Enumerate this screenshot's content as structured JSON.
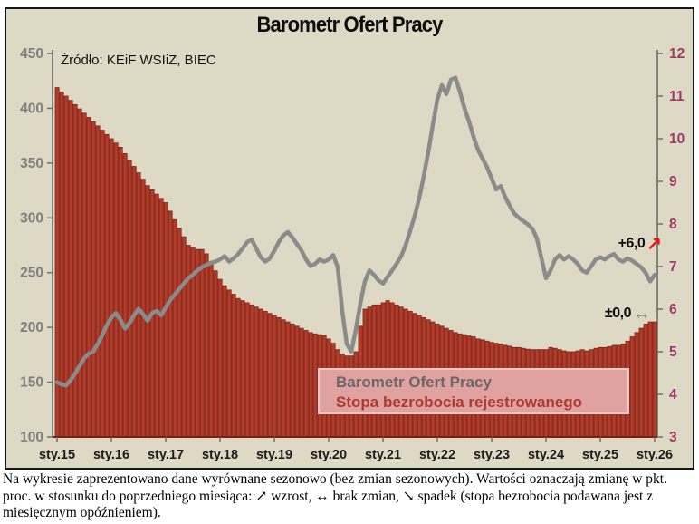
{
  "header": {
    "title": "Barometr Ofert Pracy",
    "source": "Źródło: KEiF WSIiZ, BIEC"
  },
  "legend": {
    "line_label": "Barometr Ofert Pracy",
    "bar_label": "Stopa bezrobocia rejestrowanego"
  },
  "annotations": {
    "line_change": "+6,0",
    "line_arrow": "↗",
    "bar_change": "±0,0",
    "bar_arrow": "↔"
  },
  "caption": {
    "text": "Na wykresie zaprezentowano dane wyrównane sezonowo (bez zmian sezonowych). Wartości oznaczają zmianę w pkt. proc. w stosunku do poprzedniego miesiąca: ↗ wzrost, ↔ brak zmian, ↘ spadek (stopa bezrobocia podawana jest z miesięcznym opóźnieniem)."
  },
  "colors": {
    "chart_background": "#ddd9c4",
    "bar_fill": "#b23b2b",
    "bar_edge": "#7c2315",
    "line_stroke": "#8b8b8b",
    "left_tick_labels": "#7f7f7f",
    "right_tick_labels": "#9e3a64",
    "x_tick_labels": "#1a1a1a",
    "bottom_axis": "#7a2114",
    "spine": "#6e6e6e"
  },
  "chart_data": {
    "type": "combo",
    "title": "Barometr Ofert Pracy",
    "x_tick_labels": [
      "sty.15",
      "sty.16",
      "sty.17",
      "sty.18",
      "sty.19",
      "sty.20",
      "sty.21",
      "sty.22",
      "sty.23",
      "sty.24",
      "sty.25",
      "sty.26"
    ],
    "months_per_tick": 12,
    "left_axis": {
      "range": [
        100,
        450
      ],
      "ticks": [
        450,
        400,
        350,
        300,
        250,
        200,
        150,
        100
      ]
    },
    "right_axis": {
      "range": [
        3,
        12
      ],
      "ticks": [
        12,
        11,
        10,
        9,
        8,
        7,
        6,
        5,
        4,
        3
      ]
    },
    "grid": false,
    "legend_position": "inside-bottom-center",
    "series": [
      {
        "name": "Barometr Ofert Pracy",
        "type": "line",
        "axis": "left",
        "last_change_annotation": "+6,0",
        "values": [
          150,
          148,
          147,
          152,
          158,
          165,
          172,
          176,
          178,
          185,
          193,
          202,
          209,
          213,
          207,
          199,
          204,
          211,
          217,
          212,
          206,
          213,
          215,
          211,
          218,
          225,
          230,
          235,
          240,
          245,
          248,
          252,
          255,
          257,
          259,
          260,
          262,
          265,
          260,
          263,
          267,
          272,
          278,
          280,
          272,
          264,
          260,
          263,
          270,
          278,
          284,
          287,
          282,
          276,
          270,
          262,
          256,
          258,
          262,
          260,
          262,
          266,
          255,
          215,
          185,
          178,
          198,
          222,
          242,
          252,
          248,
          243,
          240,
          246,
          252,
          258,
          265,
          275,
          288,
          302,
          318,
          338,
          360,
          385,
          408,
          421,
          413,
          426,
          428,
          415,
          400,
          388,
          374,
          362,
          354,
          346,
          336,
          326,
          329,
          319,
          311,
          304,
          300,
          297,
          294,
          290,
          281,
          263,
          245,
          252,
          262,
          266,
          262,
          265,
          262,
          258,
          252,
          250,
          256,
          262,
          264,
          262,
          265,
          267,
          262,
          260,
          263,
          261,
          258,
          255,
          250,
          242,
          248
        ]
      },
      {
        "name": "Stopa bezrobocia rejestrowanego",
        "type": "bar",
        "axis": "right",
        "last_change_annotation": "±0,0",
        "values": [
          11.2,
          11.1,
          11.0,
          10.9,
          10.8,
          10.7,
          10.6,
          10.5,
          10.4,
          10.3,
          10.2,
          10.1,
          10.0,
          9.9,
          9.8,
          9.65,
          9.5,
          9.35,
          9.2,
          9.05,
          8.9,
          8.8,
          8.7,
          8.6,
          8.5,
          8.3,
          8.1,
          7.9,
          7.7,
          7.5,
          7.45,
          7.4,
          7.4,
          7.3,
          7.1,
          6.9,
          6.7,
          6.55,
          6.45,
          6.35,
          6.25,
          6.2,
          6.15,
          6.1,
          6.05,
          6.0,
          5.95,
          5.9,
          5.85,
          5.8,
          5.75,
          5.7,
          5.65,
          5.6,
          5.55,
          5.5,
          5.45,
          5.42,
          5.4,
          5.38,
          5.3,
          5.2,
          5.05,
          4.95,
          4.9,
          4.9,
          5.0,
          5.6,
          6.0,
          6.05,
          6.1,
          6.1,
          6.15,
          6.2,
          6.15,
          6.1,
          6.05,
          6.0,
          5.95,
          5.9,
          5.85,
          5.8,
          5.75,
          5.7,
          5.65,
          5.6,
          5.55,
          5.5,
          5.45,
          5.42,
          5.4,
          5.37,
          5.35,
          5.3,
          5.28,
          5.25,
          5.22,
          5.2,
          5.18,
          5.15,
          5.13,
          5.1,
          5.1,
          5.08,
          5.06,
          5.05,
          5.05,
          5.05,
          5.05,
          5.1,
          5.08,
          5.05,
          5.02,
          5.0,
          5.0,
          5.02,
          5.05,
          5.02,
          5.05,
          5.08,
          5.1,
          5.1,
          5.12,
          5.15,
          5.15,
          5.18,
          5.25,
          5.35,
          5.45,
          5.55,
          5.65,
          5.7,
          5.7
        ]
      }
    ]
  }
}
